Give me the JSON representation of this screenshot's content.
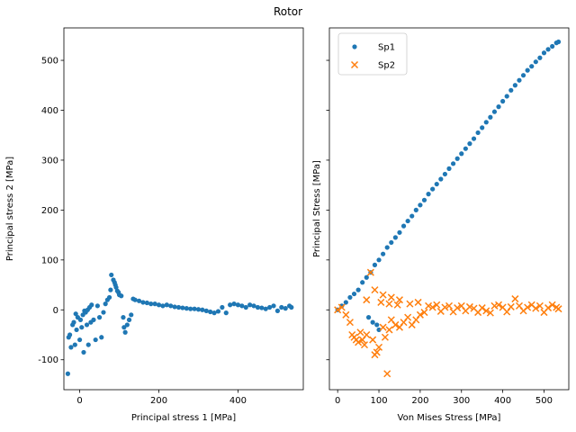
{
  "chart_data": {
    "type": "scatter",
    "title": "Rotor",
    "colors": {
      "sp1": "#1f77b4",
      "sp2": "#ff7f0e"
    },
    "subplots": [
      {
        "name": "principal-stress-plot",
        "xlabel": "Principal stress 1 [MPa]",
        "ylabel": "Principal stress 2 [MPa]",
        "xlim": [
          -40,
          565
        ],
        "ylim": [
          -160,
          565
        ],
        "xticks": [
          0,
          200,
          400
        ],
        "yticks": [
          -100,
          0,
          100,
          200,
          300,
          400,
          500
        ],
        "series": [
          {
            "name": "Sp1",
            "marker": "circle",
            "color": "#1f77b4",
            "points": [
              [
                -30,
                -128
              ],
              [
                -28,
                -55
              ],
              [
                -25,
                -50
              ],
              [
                -22,
                -75
              ],
              [
                -18,
                -30
              ],
              [
                -15,
                -25
              ],
              [
                -12,
                -70
              ],
              [
                -10,
                -8
              ],
              [
                -8,
                -40
              ],
              [
                -5,
                -15
              ],
              [
                0,
                -60
              ],
              [
                2,
                -20
              ],
              [
                5,
                -35
              ],
              [
                8,
                -10
              ],
              [
                10,
                -85
              ],
              [
                12,
                -2
              ],
              [
                15,
                -5
              ],
              [
                18,
                -30
              ],
              [
                20,
                0
              ],
              [
                22,
                -70
              ],
              [
                25,
                5
              ],
              [
                28,
                -25
              ],
              [
                30,
                10
              ],
              [
                35,
                -20
              ],
              [
                40,
                -60
              ],
              [
                45,
                8
              ],
              [
                50,
                -15
              ],
              [
                55,
                -55
              ],
              [
                60,
                -5
              ],
              [
                65,
                12
              ],
              [
                70,
                20
              ],
              [
                75,
                25
              ],
              [
                78,
                40
              ],
              [
                80,
                70
              ],
              [
                85,
                60
              ],
              [
                88,
                55
              ],
              [
                90,
                50
              ],
              [
                92,
                45
              ],
              [
                95,
                38
              ],
              [
                98,
                35
              ],
              [
                100,
                30
              ],
              [
                105,
                28
              ],
              [
                110,
                -15
              ],
              [
                112,
                -35
              ],
              [
                115,
                -45
              ],
              [
                120,
                -30
              ],
              [
                125,
                -20
              ],
              [
                130,
                -10
              ],
              [
                135,
                22
              ],
              [
                140,
                20
              ],
              [
                150,
                18
              ],
              [
                160,
                15
              ],
              [
                170,
                14
              ],
              [
                180,
                12
              ],
              [
                190,
                12
              ],
              [
                200,
                10
              ],
              [
                210,
                8
              ],
              [
                220,
                10
              ],
              [
                230,
                8
              ],
              [
                240,
                6
              ],
              [
                250,
                5
              ],
              [
                260,
                4
              ],
              [
                270,
                3
              ],
              [
                280,
                2
              ],
              [
                290,
                2
              ],
              [
                300,
                1
              ],
              [
                310,
                0
              ],
              [
                320,
                -2
              ],
              [
                330,
                -4
              ],
              [
                340,
                -6
              ],
              [
                350,
                -3
              ],
              [
                360,
                5
              ],
              [
                370,
                -6
              ],
              [
                380,
                10
              ],
              [
                390,
                12
              ],
              [
                400,
                10
              ],
              [
                410,
                8
              ],
              [
                420,
                5
              ],
              [
                430,
                10
              ],
              [
                440,
                8
              ],
              [
                450,
                5
              ],
              [
                460,
                4
              ],
              [
                470,
                2
              ],
              [
                480,
                5
              ],
              [
                490,
                8
              ],
              [
                500,
                -2
              ],
              [
                510,
                5
              ],
              [
                520,
                3
              ],
              [
                530,
                8
              ],
              [
                535,
                5
              ]
            ]
          }
        ]
      },
      {
        "name": "von-mises-plot",
        "xlabel": "Von Mises Stress [MPa]",
        "ylabel": "Principal Stress [MPa]",
        "xlim": [
          -20,
          560
        ],
        "ylim": [
          -160,
          565
        ],
        "xticks": [
          0,
          100,
          200,
          300,
          400,
          500
        ],
        "yticks": [
          -100,
          0,
          100,
          200,
          300,
          400,
          500
        ],
        "legend": {
          "position": "top-left",
          "entries": [
            "Sp1",
            "Sp2"
          ]
        },
        "series": [
          {
            "name": "Sp1",
            "marker": "circle",
            "color": "#1f77b4",
            "points": [
              [
                0,
                0
              ],
              [
                10,
                8
              ],
              [
                20,
                15
              ],
              [
                30,
                25
              ],
              [
                40,
                32
              ],
              [
                50,
                40
              ],
              [
                60,
                55
              ],
              [
                70,
                65
              ],
              [
                80,
                75
              ],
              [
                90,
                90
              ],
              [
                100,
                100
              ],
              [
                110,
                112
              ],
              [
                120,
                125
              ],
              [
                130,
                135
              ],
              [
                140,
                145
              ],
              [
                150,
                155
              ],
              [
                160,
                168
              ],
              [
                170,
                178
              ],
              [
                180,
                188
              ],
              [
                190,
                200
              ],
              [
                200,
                210
              ],
              [
                210,
                220
              ],
              [
                220,
                232
              ],
              [
                230,
                242
              ],
              [
                240,
                252
              ],
              [
                250,
                262
              ],
              [
                260,
                272
              ],
              [
                270,
                283
              ],
              [
                280,
                293
              ],
              [
                290,
                303
              ],
              [
                300,
                313
              ],
              [
                310,
                323
              ],
              [
                320,
                333
              ],
              [
                330,
                343
              ],
              [
                340,
                355
              ],
              [
                350,
                365
              ],
              [
                360,
                376
              ],
              [
                370,
                386
              ],
              [
                380,
                397
              ],
              [
                390,
                407
              ],
              [
                400,
                418
              ],
              [
                410,
                428
              ],
              [
                420,
                440
              ],
              [
                430,
                450
              ],
              [
                440,
                460
              ],
              [
                450,
                470
              ],
              [
                460,
                480
              ],
              [
                470,
                488
              ],
              [
                480,
                497
              ],
              [
                490,
                505
              ],
              [
                500,
                515
              ],
              [
                510,
                522
              ],
              [
                520,
                528
              ],
              [
                530,
                535
              ],
              [
                535,
                537
              ],
              [
                75,
                -15
              ],
              [
                85,
                -25
              ],
              [
                95,
                -30
              ],
              [
                100,
                -40
              ]
            ]
          },
          {
            "name": "Sp2",
            "marker": "x",
            "color": "#ff7f0e",
            "points": [
              [
                0,
                0
              ],
              [
                10,
                5
              ],
              [
                20,
                -10
              ],
              [
                30,
                -25
              ],
              [
                35,
                -50
              ],
              [
                40,
                -55
              ],
              [
                45,
                -60
              ],
              [
                50,
                -65
              ],
              [
                55,
                -45
              ],
              [
                60,
                -60
              ],
              [
                65,
                -70
              ],
              [
                70,
                -50
              ],
              [
                80,
                75
              ],
              [
                85,
                -60
              ],
              [
                90,
                -90
              ],
              [
                95,
                -85
              ],
              [
                100,
                -75
              ],
              [
                110,
                -35
              ],
              [
                115,
                -55
              ],
              [
                120,
                -128
              ],
              [
                125,
                -40
              ],
              [
                130,
                -20
              ],
              [
                140,
                -30
              ],
              [
                150,
                -35
              ],
              [
                160,
                -25
              ],
              [
                170,
                -15
              ],
              [
                180,
                -30
              ],
              [
                190,
                -20
              ],
              [
                200,
                -10
              ],
              [
                210,
                -5
              ],
              [
                220,
                8
              ],
              [
                230,
                5
              ],
              [
                240,
                10
              ],
              [
                250,
                -3
              ],
              [
                260,
                5
              ],
              [
                270,
                8
              ],
              [
                280,
                -4
              ],
              [
                290,
                4
              ],
              [
                300,
                8
              ],
              [
                310,
                -2
              ],
              [
                320,
                6
              ],
              [
                330,
                3
              ],
              [
                340,
                -5
              ],
              [
                350,
                4
              ],
              [
                360,
                -2
              ],
              [
                370,
                -6
              ],
              [
                380,
                8
              ],
              [
                390,
                10
              ],
              [
                400,
                5
              ],
              [
                410,
                -4
              ],
              [
                420,
                6
              ],
              [
                430,
                22
              ],
              [
                440,
                8
              ],
              [
                450,
                -2
              ],
              [
                460,
                5
              ],
              [
                470,
                10
              ],
              [
                480,
                3
              ],
              [
                490,
                8
              ],
              [
                500,
                -5
              ],
              [
                510,
                4
              ],
              [
                520,
                10
              ],
              [
                530,
                5
              ],
              [
                535,
                2
              ],
              [
                70,
                20
              ],
              [
                90,
                40
              ],
              [
                110,
                30
              ],
              [
                130,
                25
              ],
              [
                150,
                20
              ],
              [
                105,
                15
              ],
              [
                125,
                12
              ],
              [
                145,
                10
              ],
              [
                175,
                12
              ],
              [
                195,
                15
              ]
            ]
          }
        ]
      }
    ]
  }
}
